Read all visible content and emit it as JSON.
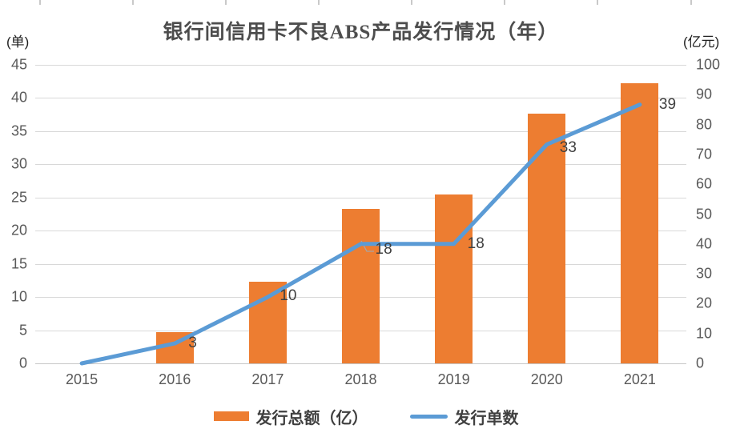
{
  "chart_data": {
    "type": "combo",
    "title": "银行间信用卡不良ABS产品发行情况（年）",
    "categories": [
      "2015",
      "2016",
      "2017",
      "2018",
      "2019",
      "2020",
      "2021"
    ],
    "series": [
      {
        "name": "发行总额（亿）",
        "type": "bar",
        "axis": "right",
        "color": "#ED7D31",
        "values": [
          0,
          10.5,
          27.4,
          51.8,
          56.6,
          83.7,
          93.9
        ]
      },
      {
        "name": "发行单数",
        "type": "line",
        "axis": "left",
        "color": "#5B9BD5",
        "values": [
          0,
          3,
          10,
          18,
          18,
          33,
          39
        ],
        "data_labels": [
          "",
          "3",
          "10",
          "18",
          "18",
          "33",
          "39"
        ]
      }
    ],
    "left_axis": {
      "unit_label": "(单)",
      "min": 0,
      "max": 45,
      "step": 5,
      "tick_labels": [
        "45",
        "40",
        "35",
        "30",
        "25",
        "20",
        "15",
        "10",
        "5",
        "0"
      ]
    },
    "right_axis": {
      "unit_label": "(亿元)",
      "min": 0,
      "max": 100,
      "step": 10,
      "tick_labels": [
        "100",
        "90",
        "80",
        "70",
        "60",
        "50",
        "40",
        "30",
        "20",
        "10",
        "0"
      ]
    },
    "grid": "horizontal gridlines at left-axis ticks",
    "legend_position": "bottom",
    "colors": {
      "bar": "#ED7D31",
      "line": "#5B9BD5",
      "gridline": "#d8d8d8",
      "axis_text": "#595959",
      "data_label_text": "#404040",
      "title_text": "#4d4d4d"
    }
  },
  "legend": {
    "items": [
      {
        "label": "发行总额（亿）",
        "swatch": "bar"
      },
      {
        "label": "发行单数",
        "swatch": "line"
      }
    ]
  }
}
